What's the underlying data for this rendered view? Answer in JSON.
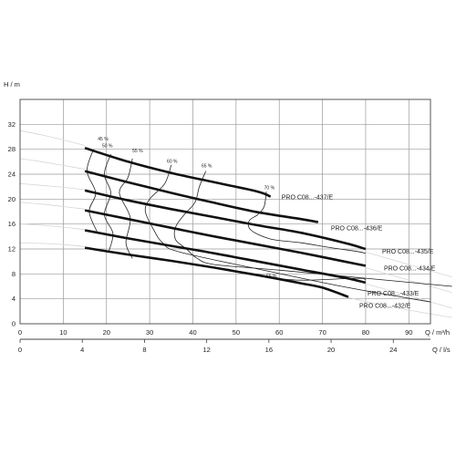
{
  "chart_data": {
    "type": "line",
    "title": "",
    "y_axis": {
      "label": "H / m",
      "range": [
        0,
        36
      ],
      "ticks": [
        "0",
        "4",
        "8",
        "12",
        "16",
        "20",
        "24",
        "28",
        "32"
      ],
      "tick_values": [
        0,
        4,
        8,
        12,
        16,
        20,
        24,
        28,
        32
      ]
    },
    "x_axis_primary": {
      "label": "Q / m³/h",
      "range": [
        0,
        95
      ],
      "ticks": [
        "0",
        "10",
        "20",
        "30",
        "40",
        "50",
        "60",
        "70",
        "80",
        "90"
      ],
      "tick_values": [
        0,
        10,
        20,
        30,
        40,
        50,
        60,
        70,
        80,
        90
      ]
    },
    "x_axis_secondary": {
      "label": "Q / l/s",
      "ticks": [
        "0",
        "4",
        "8",
        "12",
        "16",
        "20",
        "24"
      ],
      "tick_values": [
        0,
        4,
        8,
        12,
        16,
        20,
        24
      ]
    },
    "grid": true,
    "series": [
      {
        "name": "PRO C08...-437/E",
        "x": [
          15,
          25,
          35,
          45,
          55,
          58
        ],
        "y": [
          28.2,
          26.0,
          24.2,
          22.7,
          21.2,
          20.4
        ]
      },
      {
        "name": "PRO C08...-436/E",
        "x": [
          15,
          25,
          35,
          45,
          55,
          65,
          69
        ],
        "y": [
          24.5,
          22.7,
          21.0,
          19.4,
          17.9,
          16.8,
          16.3
        ]
      },
      {
        "name": "PRO C08...-435/E",
        "x": [
          15,
          25,
          35,
          45,
          55,
          65,
          75,
          80
        ],
        "y": [
          21.4,
          19.8,
          18.4,
          17.1,
          15.8,
          14.6,
          13.0,
          12.0
        ]
      },
      {
        "name": "PRO C08...-434/E",
        "x": [
          15,
          25,
          35,
          45,
          55,
          65,
          75,
          80
        ],
        "y": [
          18.2,
          16.8,
          15.4,
          14.0,
          12.7,
          11.4,
          10.0,
          9.3
        ]
      },
      {
        "name": "PRO C08...-433/E",
        "x": [
          15,
          25,
          35,
          45,
          55,
          65,
          75,
          80
        ],
        "y": [
          15.0,
          13.7,
          12.5,
          11.3,
          10.0,
          8.7,
          7.4,
          6.6
        ]
      },
      {
        "name": "PRO C08...-432/E",
        "x": [
          15,
          25,
          35,
          45,
          55,
          65,
          70,
          76
        ],
        "y": [
          12.2,
          11.1,
          10.1,
          9.0,
          7.8,
          6.5,
          5.8,
          4.3
        ]
      }
    ],
    "efficiency_curves": [
      {
        "label": "45 %",
        "x": [
          17,
          15.5,
          17.5,
          16,
          18
        ],
        "y": [
          28,
          24.5,
          21,
          18,
          14.5
        ],
        "label_x": 18,
        "label_y": 29.4
      },
      {
        "label": "50 %",
        "x": [
          21,
          19.5,
          21,
          19.5,
          21.5,
          20.5
        ],
        "y": [
          27.2,
          24,
          21,
          17.5,
          14.5,
          11.5
        ],
        "label_x": 19,
        "label_y": 28.3
      },
      {
        "label": "55 %",
        "x": [
          26,
          25,
          23,
          25.5,
          24.5,
          26
        ],
        "y": [
          26.5,
          23.5,
          21,
          17,
          13,
          10.5
        ],
        "label_x": 26,
        "label_y": 27.5
      },
      {
        "label": "60 %",
        "x": [
          35,
          33.5,
          30,
          29,
          31,
          33,
          37,
          57,
          76,
          95
        ],
        "y": [
          25.5,
          22.5,
          20,
          18,
          15,
          13,
          11.5,
          8.5,
          5.8,
          3.5
        ],
        "label_x": 34,
        "label_y": 25.8
      },
      {
        "label": "65 %",
        "x": [
          43,
          41.5,
          40.5,
          38,
          36,
          36,
          38.5,
          41,
          45,
          60,
          80,
          100
        ],
        "y": [
          24.5,
          22,
          19.5,
          17.5,
          15.5,
          13.5,
          12,
          10.5,
          9.5,
          8.6,
          7.3,
          6.0
        ],
        "label_x": 42,
        "label_y": 25.1
      },
      {
        "label": "70 %",
        "x": [
          57,
          56.5,
          55,
          53,
          53.5,
          58,
          65,
          72,
          78,
          80
        ],
        "y": [
          21.2,
          18.8,
          17.5,
          16.5,
          15,
          13.6,
          13,
          12.2,
          11.6,
          11.3
        ],
        "label_x": 56.5,
        "label_y": 21.6
      },
      {
        "label": "55 %",
        "x": [
          48,
          56,
          65,
          78,
          80
        ],
        "y": [
          8.8,
          7.6,
          7.0,
          7.3,
          7.0
        ],
        "label_x": 57,
        "label_y": 7.4
      }
    ],
    "faint_curves": [
      {
        "x": [
          0,
          5,
          10,
          15
        ],
        "y": [
          31.0,
          30.3,
          29.5,
          28.6
        ]
      },
      {
        "x": [
          0,
          5,
          10,
          15
        ],
        "y": [
          26.5,
          26.0,
          25.4,
          24.8
        ]
      },
      {
        "x": [
          0,
          5,
          10,
          15
        ],
        "y": [
          22.5,
          22.2,
          21.9,
          21.5
        ]
      },
      {
        "x": [
          0,
          5,
          10,
          15
        ],
        "y": [
          19.5,
          19.2,
          18.8,
          18.4
        ]
      },
      {
        "x": [
          0,
          5,
          10,
          15
        ],
        "y": [
          16.0,
          15.8,
          15.5,
          15.1
        ]
      },
      {
        "x": [
          0,
          5,
          10,
          15
        ],
        "y": [
          13.0,
          12.9,
          12.7,
          12.4
        ]
      },
      {
        "x": [
          80,
          90,
          100
        ],
        "y": [
          11.5,
          9.5,
          7.5
        ]
      },
      {
        "x": [
          80,
          90,
          100
        ],
        "y": [
          9.0,
          7.0,
          5.0
        ]
      },
      {
        "x": [
          80,
          90,
          100
        ],
        "y": [
          6.4,
          4.5,
          2.5
        ]
      },
      {
        "x": [
          76,
          85,
          100
        ],
        "y": [
          4.2,
          2.8,
          1.0
        ]
      }
    ]
  }
}
